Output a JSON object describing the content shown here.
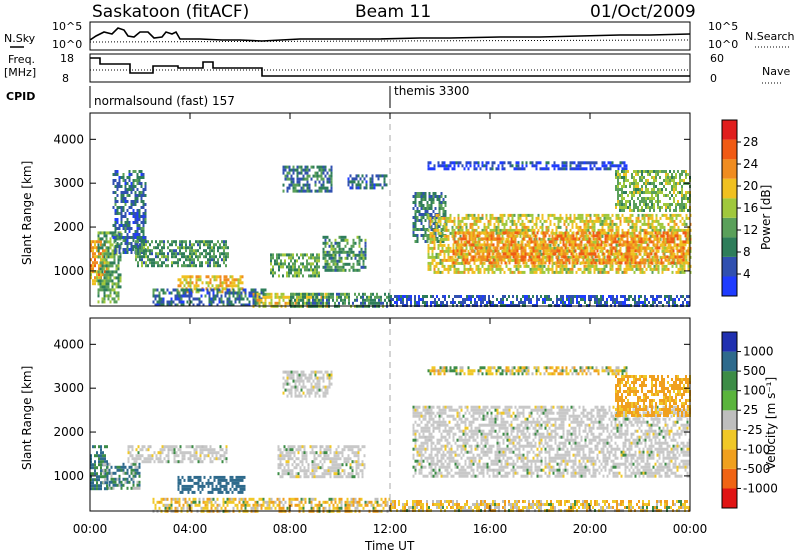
{
  "header": {
    "station": "Saskatoon (fitACF)",
    "beam": "Beam 11",
    "date": "01/Oct/2009"
  },
  "strip": {
    "nsky_label": "N.Sky",
    "nsky_ticks": [
      "10^5",
      "10^0"
    ],
    "nsearch_label": "N.Search",
    "nsearch_ticks": [
      "10^5",
      "10^0"
    ],
    "freq_label_1": "Freq.",
    "freq_label_2": "[MHz]",
    "freq_ticks": [
      "18",
      "8"
    ],
    "nave_label": "Nave",
    "nave_ticks": [
      "60",
      "0"
    ],
    "cpid_label": "CPID",
    "cpid_segments": [
      {
        "label": "normalsound (fast) 157",
        "start_hour": 0
      },
      {
        "label": "themis 3300",
        "start_hour": 12
      }
    ]
  },
  "colors": {
    "power_scale": [
      "#1f3cff",
      "#3050b0",
      "#2e7d5a",
      "#5aa05a",
      "#a0c83c",
      "#f0c020",
      "#f08c20",
      "#f05a14",
      "#e01e1e"
    ],
    "velocity_scale": [
      "#2030b0",
      "#2e6a8c",
      "#3c8c46",
      "#5ab43c",
      "#bebebe",
      "#f0c828",
      "#f0a01e",
      "#f06414",
      "#e01414"
    ],
    "velocity_gray": "#c8c8c8"
  },
  "chart_data": [
    {
      "type": "heatmap",
      "name": "power",
      "ylabel": "Slant Range [km]",
      "yticks": [
        1000,
        2000,
        3000,
        4000
      ],
      "ylim": [
        200,
        4600
      ],
      "xlim": [
        0,
        24
      ],
      "xticks": [
        "00:00",
        "04:00",
        "08:00",
        "12:00",
        "16:00",
        "20:00",
        "00:00"
      ],
      "colorbar_label": "Power [dB]",
      "colorbar_ticks": [
        "4",
        "8",
        "12",
        "16",
        "20",
        "24",
        "28"
      ],
      "echo_regions": [
        {
          "t0": 0.0,
          "t1": 0.7,
          "r0": 700,
          "r1": 1700,
          "power": 24
        },
        {
          "t0": 0.3,
          "t1": 1.2,
          "r0": 300,
          "r1": 1900,
          "power": 14
        },
        {
          "t0": 0.9,
          "t1": 2.2,
          "r0": 1400,
          "r1": 3300,
          "power": 8
        },
        {
          "t0": 1.8,
          "t1": 5.5,
          "r0": 1100,
          "r1": 1700,
          "power": 12
        },
        {
          "t0": 3.5,
          "t1": 6.2,
          "r0": 500,
          "r1": 900,
          "power": 22
        },
        {
          "t0": 2.5,
          "t1": 7.0,
          "r0": 200,
          "r1": 600,
          "power": 8
        },
        {
          "t0": 6.5,
          "t1": 9.5,
          "r0": 200,
          "r1": 500,
          "power": 20
        },
        {
          "t0": 7.2,
          "t1": 9.2,
          "r0": 900,
          "r1": 1400,
          "power": 14
        },
        {
          "t0": 9.3,
          "t1": 11.0,
          "r0": 1000,
          "r1": 1800,
          "power": 12
        },
        {
          "t0": 7.7,
          "t1": 9.7,
          "r0": 2800,
          "r1": 3400,
          "power": 9
        },
        {
          "t0": 10.3,
          "t1": 11.9,
          "r0": 2900,
          "r1": 3200,
          "power": 7
        },
        {
          "t0": 8.0,
          "t1": 12.0,
          "r0": 200,
          "r1": 500,
          "power": 12
        },
        {
          "t0": 12.9,
          "t1": 14.2,
          "r0": 1700,
          "r1": 2800,
          "power": 10
        },
        {
          "t0": 13.5,
          "t1": 24.0,
          "r0": 1000,
          "r1": 2300,
          "power": 20
        },
        {
          "t0": 14.5,
          "t1": 24.0,
          "r0": 1200,
          "r1": 1900,
          "power": 26
        },
        {
          "t0": 13.5,
          "t1": 21.5,
          "r0": 3300,
          "r1": 3500,
          "power": 4
        },
        {
          "t0": 21.0,
          "t1": 24.0,
          "r0": 2400,
          "r1": 3300,
          "power": 16
        },
        {
          "t0": 12.0,
          "t1": 24.0,
          "r0": 200,
          "r1": 450,
          "power": 6
        }
      ]
    },
    {
      "type": "heatmap",
      "name": "velocity",
      "ylabel": "Slant Range [km]",
      "yticks": [
        1000,
        2000,
        3000,
        4000
      ],
      "ylim": [
        200,
        4600
      ],
      "xlim": [
        0,
        24
      ],
      "xticks": [
        "00:00",
        "04:00",
        "08:00",
        "12:00",
        "16:00",
        "20:00",
        "00:00"
      ],
      "xlabel": "Time UT",
      "colorbar_label": "Velocity [m s⁻¹]",
      "colorbar_ticks": [
        "1000",
        "500",
        "100",
        "25",
        "-25",
        "-100",
        "-500",
        "-1000"
      ],
      "echo_regions": [
        {
          "t0": 0.0,
          "t1": 0.7,
          "r0": 700,
          "r1": 1700,
          "velocity": 120
        },
        {
          "t0": 0.5,
          "t1": 2.0,
          "r0": 700,
          "r1": 1300,
          "velocity": 80
        },
        {
          "t0": 1.5,
          "t1": 5.5,
          "r0": 1300,
          "r1": 1700,
          "velocity": 0
        },
        {
          "t0": 3.5,
          "t1": 6.2,
          "r0": 600,
          "r1": 1000,
          "velocity": 200
        },
        {
          "t0": 2.5,
          "t1": 12.0,
          "r0": 200,
          "r1": 500,
          "velocity": -60
        },
        {
          "t0": 7.5,
          "t1": 11.0,
          "r0": 1000,
          "r1": 1700,
          "velocity": 0
        },
        {
          "t0": 7.7,
          "t1": 9.7,
          "r0": 2800,
          "r1": 3400,
          "velocity": 0
        },
        {
          "t0": 12.9,
          "t1": 24.0,
          "r0": 1000,
          "r1": 2600,
          "velocity": 0
        },
        {
          "t0": 13.5,
          "t1": 21.5,
          "r0": 3300,
          "r1": 3500,
          "velocity": -30
        },
        {
          "t0": 21.0,
          "t1": 24.0,
          "r0": 2400,
          "r1": 3300,
          "velocity": -150
        },
        {
          "t0": 12.0,
          "t1": 24.0,
          "r0": 200,
          "r1": 450,
          "velocity": -60
        }
      ]
    }
  ]
}
